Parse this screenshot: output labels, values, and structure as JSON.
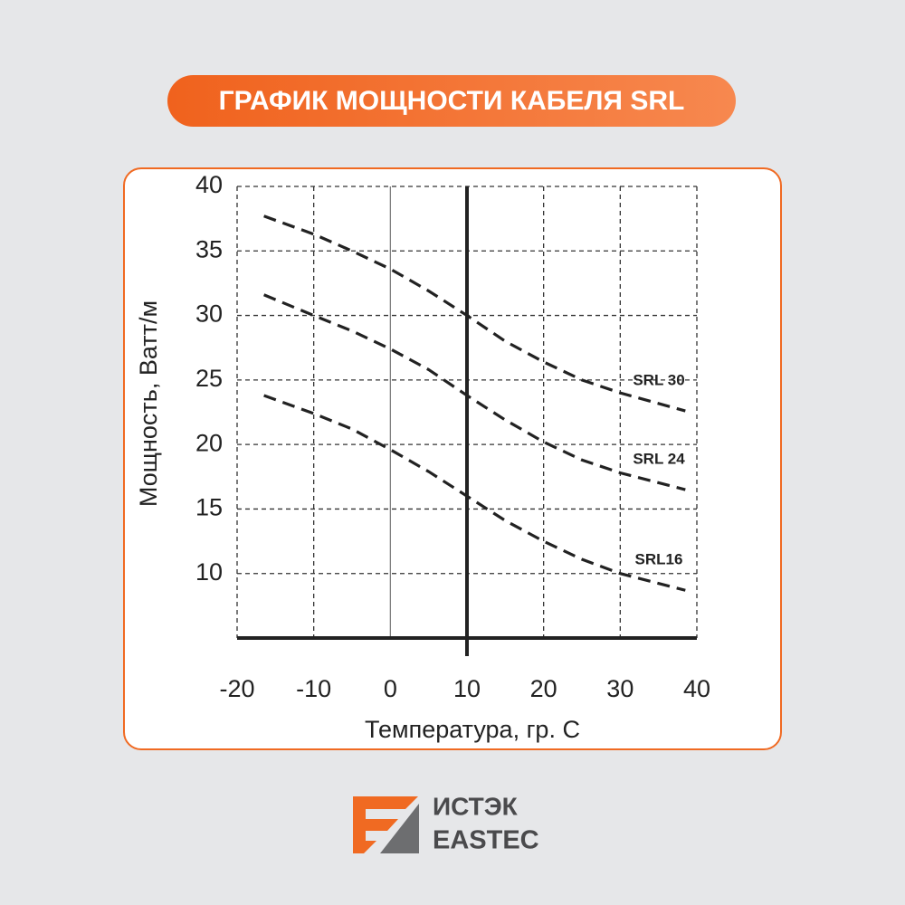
{
  "header": {
    "title": "ГРАФИК МОЩНОСТИ КАБЕЛЯ SRL"
  },
  "chart_data": {
    "type": "line",
    "x_label": "Температура, гр. С",
    "y_label": "Мощность, Ватт/м",
    "x": [
      -16.5,
      -10,
      -5,
      0,
      5,
      10,
      15,
      20,
      25,
      30,
      38.5
    ],
    "series": [
      {
        "name": "SRL 30",
        "color": "#222222",
        "values": [
          37.7,
          36.3,
          35.0,
          33.6,
          31.9,
          30.0,
          28.0,
          26.4,
          25.0,
          24.0,
          22.6
        ]
      },
      {
        "name": "SRL 24",
        "color": "#222222",
        "values": [
          31.6,
          30.0,
          28.8,
          27.4,
          25.8,
          23.8,
          21.9,
          20.2,
          18.8,
          17.8,
          16.5
        ]
      },
      {
        "name": "SRL16",
        "color": "#222222",
        "values": [
          23.8,
          22.4,
          21.2,
          19.6,
          17.9,
          16.0,
          14.1,
          12.5,
          11.1,
          10.0,
          8.7
        ]
      }
    ],
    "xlim": [
      -20,
      40
    ],
    "xticks": [
      -20,
      -10,
      0,
      10,
      20,
      30,
      40
    ],
    "ylim": [
      5,
      40
    ],
    "yticks": [
      10,
      15,
      20,
      25,
      30,
      35,
      40
    ],
    "grid": true,
    "line_style": "dashed",
    "marker_x": 10
  },
  "logo": {
    "line1": "ИСТЭК",
    "line2": "EASTEC"
  }
}
